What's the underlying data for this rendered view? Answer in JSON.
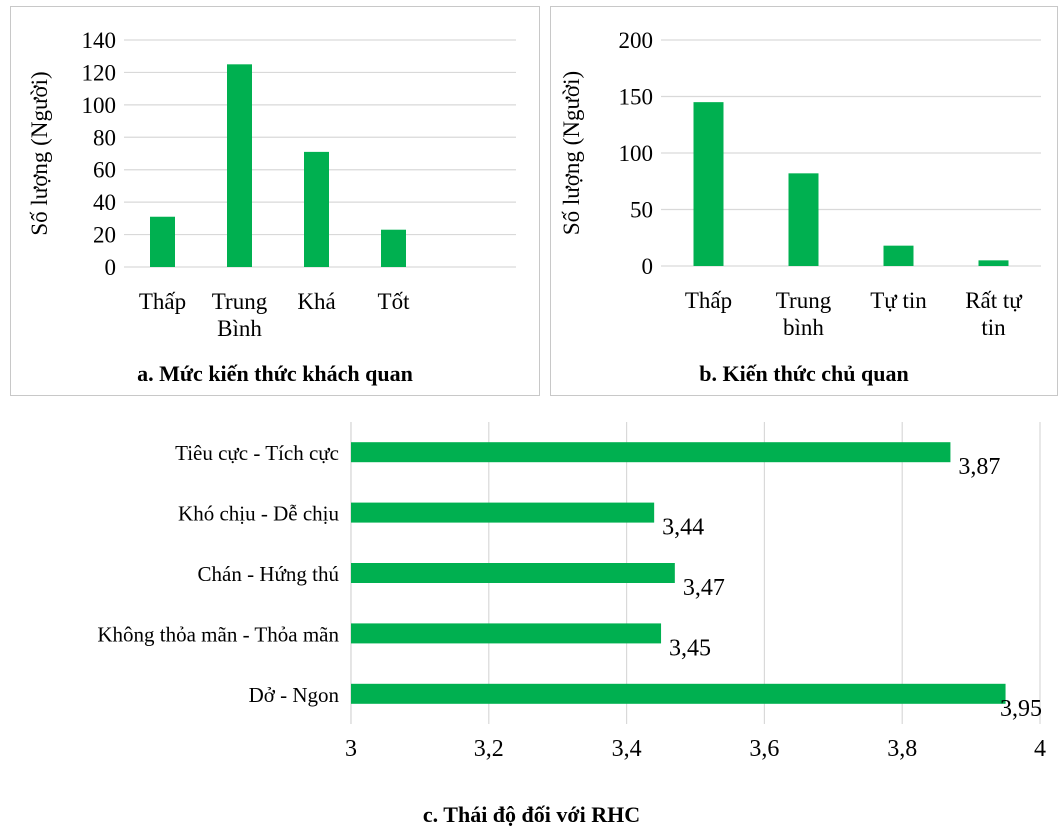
{
  "chart_data": [
    {
      "type": "bar",
      "title": "a. Mức kiến thức khách quan",
      "ylabel": "Số lượng (Người)",
      "categories": [
        [
          "Thấp"
        ],
        [
          "Trung",
          "Bình"
        ],
        [
          "Khá"
        ],
        [
          "Tốt"
        ]
      ],
      "values": [
        31,
        125,
        71,
        23
      ],
      "ylim": [
        0,
        140
      ],
      "yticks": [
        "0",
        "20",
        "40",
        "60",
        "80",
        "100",
        "120",
        "140"
      ],
      "grid": true,
      "color": "#00b050"
    },
    {
      "type": "bar",
      "title": "b. Kiến thức chủ quan",
      "ylabel": "Số lượng (Người)",
      "categories": [
        [
          "Thấp"
        ],
        [
          "Trung",
          "bình"
        ],
        [
          "Tự tin"
        ],
        [
          "Rất tự",
          "tin"
        ]
      ],
      "values": [
        145,
        82,
        18,
        5
      ],
      "ylim": [
        0,
        200
      ],
      "yticks": [
        "0",
        "50",
        "100",
        "150",
        "200"
      ],
      "grid": true,
      "color": "#00b050"
    },
    {
      "type": "bar",
      "orientation": "horizontal",
      "title": "c. Thái độ đối với RHC",
      "categories": [
        "Tiêu cực - Tích cực",
        "Khó chịu - Dễ chịu",
        "Chán - Hứng thú",
        "Không thỏa mãn - Thỏa mãn",
        "Dở - Ngon"
      ],
      "values": [
        3.87,
        3.44,
        3.47,
        3.45,
        3.95
      ],
      "data_labels": [
        "3,87",
        "3,44",
        "3,47",
        "3,45",
        "3,95"
      ],
      "xlim": [
        3,
        4
      ],
      "xticks": [
        "3",
        "3,2",
        "3,4",
        "3,6",
        "3,8",
        "4"
      ],
      "grid": true,
      "color": "#00b050"
    }
  ]
}
